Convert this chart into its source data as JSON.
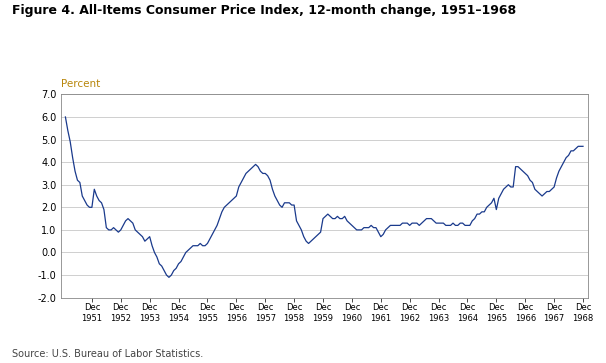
{
  "title": "Figure 4. All-Items Consumer Price Index, 12-month change, 1951–1968",
  "ylabel": "Percent",
  "source": "Source: U.S. Bureau of Labor Statistics.",
  "line_color": "#1a3a8c",
  "background_color": "#ffffff",
  "grid_color": "#c8c8c8",
  "ylim": [
    -2.0,
    7.0
  ],
  "yticks": [
    -2.0,
    -1.0,
    0.0,
    1.0,
    2.0,
    3.0,
    4.0,
    5.0,
    6.0,
    7.0
  ],
  "xtick_labels": [
    "Dec\n1951",
    "Dec\n1952",
    "Dec\n1953",
    "Dec\n1954",
    "Dec\n1955",
    "Dec\n1956",
    "Dec\n1957",
    "Dec\n1958",
    "Dec\n1959",
    "Dec\n1960",
    "Dec\n1961",
    "Dec\n1962",
    "Dec\n1963",
    "Dec\n1964",
    "Dec\n1965",
    "Dec\n1966",
    "Dec\n1967",
    "Dec\n1968"
  ],
  "monthly_values": [
    6.0,
    5.4,
    4.9,
    4.2,
    3.6,
    3.2,
    3.1,
    2.5,
    2.3,
    2.1,
    2.0,
    2.0,
    2.8,
    2.5,
    2.3,
    2.2,
    1.9,
    1.1,
    1.0,
    1.0,
    1.1,
    1.0,
    0.9,
    1.0,
    1.2,
    1.4,
    1.5,
    1.4,
    1.3,
    1.0,
    0.9,
    0.8,
    0.7,
    0.5,
    0.6,
    0.7,
    0.3,
    0.0,
    -0.2,
    -0.5,
    -0.6,
    -0.8,
    -1.0,
    -1.1,
    -1.0,
    -0.8,
    -0.7,
    -0.5,
    -0.4,
    -0.2,
    0.0,
    0.1,
    0.2,
    0.3,
    0.3,
    0.3,
    0.4,
    0.3,
    0.3,
    0.4,
    0.6,
    0.8,
    1.0,
    1.2,
    1.5,
    1.8,
    2.0,
    2.1,
    2.2,
    2.3,
    2.4,
    2.5,
    2.9,
    3.1,
    3.3,
    3.5,
    3.6,
    3.7,
    3.8,
    3.9,
    3.8,
    3.6,
    3.5,
    3.5,
    3.4,
    3.2,
    2.8,
    2.5,
    2.3,
    2.1,
    2.0,
    2.2,
    2.2,
    2.2,
    2.1,
    2.1,
    1.4,
    1.2,
    1.0,
    0.7,
    0.5,
    0.4,
    0.5,
    0.6,
    0.7,
    0.8,
    0.9,
    1.5,
    1.6,
    1.7,
    1.6,
    1.5,
    1.5,
    1.6,
    1.5,
    1.5,
    1.6,
    1.4,
    1.3,
    1.2,
    1.1,
    1.0,
    1.0,
    1.0,
    1.1,
    1.1,
    1.1,
    1.2,
    1.1,
    1.1,
    0.9,
    0.7,
    0.8,
    1.0,
    1.1,
    1.2,
    1.2,
    1.2,
    1.2,
    1.2,
    1.3,
    1.3,
    1.3,
    1.2,
    1.3,
    1.3,
    1.3,
    1.2,
    1.3,
    1.4,
    1.5,
    1.5,
    1.5,
    1.4,
    1.3,
    1.3,
    1.3,
    1.3,
    1.2,
    1.2,
    1.2,
    1.3,
    1.2,
    1.2,
    1.3,
    1.3,
    1.2,
    1.2,
    1.2,
    1.4,
    1.5,
    1.7,
    1.7,
    1.8,
    1.8,
    2.0,
    2.1,
    2.2,
    2.4,
    1.9,
    2.4,
    2.6,
    2.8,
    2.9,
    3.0,
    2.9,
    2.9,
    3.8,
    3.8,
    3.7,
    3.6,
    3.5,
    3.4,
    3.2,
    3.1,
    2.8,
    2.7,
    2.6,
    2.5,
    2.6,
    2.7,
    2.7,
    2.8,
    2.9,
    3.3,
    3.6,
    3.8,
    4.0,
    4.2,
    4.3,
    4.5,
    4.5,
    4.6,
    4.7,
    4.7,
    4.7
  ]
}
